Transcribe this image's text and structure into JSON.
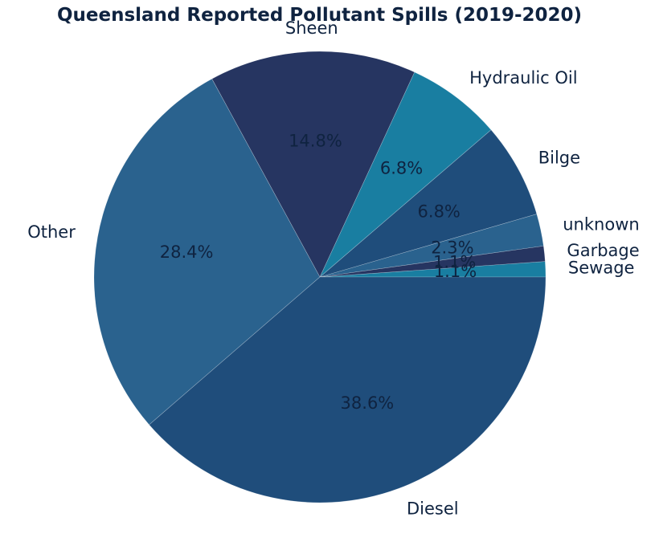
{
  "chart_data": {
    "type": "pie",
    "title": "Queensland Reported Pollutant Spills (2019-2020)",
    "slices": [
      {
        "label": "Sewage",
        "value": 1.1,
        "pct_label": "1.1%",
        "color": "#197ea1"
      },
      {
        "label": "Garbage",
        "value": 1.1,
        "pct_label": "1.1%",
        "color": "#263561"
      },
      {
        "label": "unknown",
        "value": 2.3,
        "pct_label": "2.3%",
        "color": "#2a628e"
      },
      {
        "label": "Bilge",
        "value": 6.8,
        "pct_label": "6.8%",
        "color": "#1f4d7b"
      },
      {
        "label": "Hydraulic Oil",
        "value": 6.8,
        "pct_label": "6.8%",
        "color": "#197ea1"
      },
      {
        "label": "Sheen",
        "value": 14.8,
        "pct_label": "14.8%",
        "color": "#263561"
      },
      {
        "label": "Other",
        "value": 28.4,
        "pct_label": "28.4%",
        "color": "#2a628e"
      },
      {
        "label": "Diesel",
        "value": 38.6,
        "pct_label": "38.6%",
        "color": "#1f4d7b"
      }
    ],
    "start_angle_deg": 0,
    "direction": "clockwise-from-east"
  }
}
